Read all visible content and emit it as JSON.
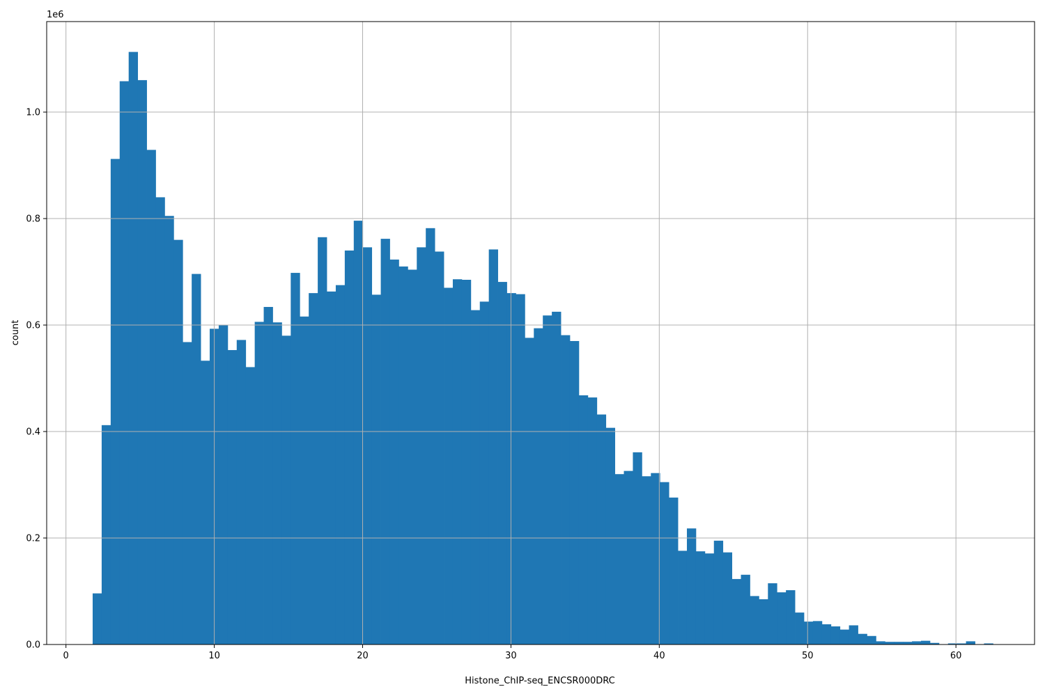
{
  "chart_data": {
    "type": "bar",
    "subtype": "histogram",
    "title": "",
    "xlabel": "Histone_ChIP-seq_ENCSR000DRC",
    "ylabel": "count",
    "y_offset_label": "1e6",
    "xlim": [
      -1.3,
      65.3
    ],
    "ylim": [
      0,
      1.17
    ],
    "x_ticks": [
      0,
      10,
      20,
      30,
      40,
      50,
      60
    ],
    "x_tick_labels": [
      "0",
      "10",
      "20",
      "30",
      "40",
      "50",
      "60"
    ],
    "y_ticks": [
      0,
      0.2,
      0.4,
      0.6,
      0.8,
      1.0
    ],
    "y_tick_labels": [
      "0.0",
      "0.2",
      "0.4",
      "0.6",
      "0.8",
      "1.0"
    ],
    "grid": true,
    "bar_color": "#1f77b4",
    "bin_start": 1.8,
    "bin_width": 0.607,
    "values": [
      0.096,
      0.412,
      0.912,
      1.058,
      1.113,
      1.06,
      0.929,
      0.84,
      0.805,
      0.76,
      0.568,
      0.696,
      0.533,
      0.593,
      0.6,
      0.553,
      0.572,
      0.521,
      0.606,
      0.634,
      0.605,
      0.58,
      0.698,
      0.616,
      0.66,
      0.765,
      0.663,
      0.675,
      0.74,
      0.796,
      0.746,
      0.657,
      0.762,
      0.723,
      0.71,
      0.704,
      0.746,
      0.782,
      0.738,
      0.67,
      0.686,
      0.685,
      0.628,
      0.644,
      0.742,
      0.681,
      0.66,
      0.658,
      0.576,
      0.594,
      0.618,
      0.625,
      0.581,
      0.57,
      0.468,
      0.464,
      0.432,
      0.407,
      0.32,
      0.326,
      0.361,
      0.316,
      0.322,
      0.305,
      0.276,
      0.176,
      0.218,
      0.175,
      0.171,
      0.195,
      0.173,
      0.123,
      0.131,
      0.091,
      0.085,
      0.115,
      0.098,
      0.102,
      0.06,
      0.043,
      0.044,
      0.038,
      0.034,
      0.028,
      0.036,
      0.02,
      0.016,
      0.006,
      0.005,
      0.005,
      0.005,
      0.006,
      0.007,
      0.003,
      0.0,
      0.002,
      0.002,
      0.006,
      0.0,
      0.002
    ]
  }
}
